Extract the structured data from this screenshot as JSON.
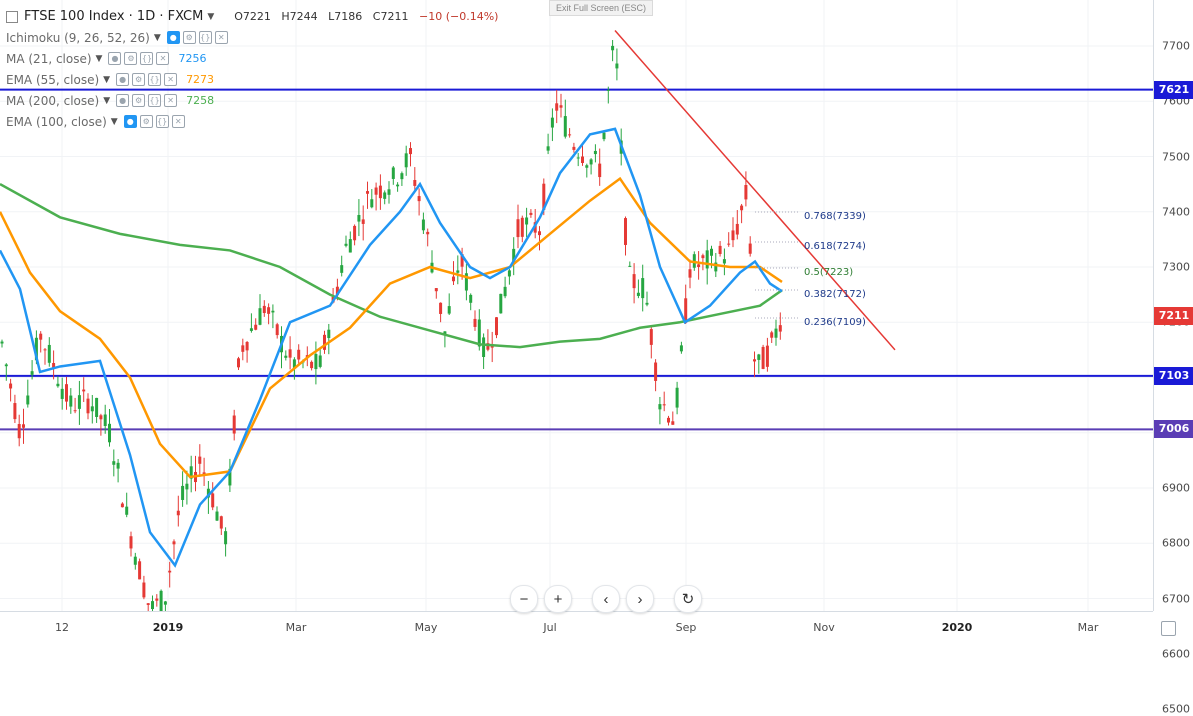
{
  "header": {
    "symbol": "FTSE 100 Index · 1D · FXCM",
    "open": "O7221",
    "high": "H7244",
    "low": "L7186",
    "close": "C7211",
    "change": "−10 (−0.14%)"
  },
  "exit_fullscreen": "Exit Full Screen (ESC)",
  "indicators": [
    {
      "name": "Ichimoku (9, 26, 52, 26)",
      "value": "",
      "color": "#2196f3",
      "icon": "eye-slash-icon"
    },
    {
      "name": "MA (21, close)",
      "value": "7256",
      "color": "#2196f3",
      "icon": "eye-icon"
    },
    {
      "name": "EMA (55, close)",
      "value": "7273",
      "color": "#ff9800",
      "icon": "eye-icon"
    },
    {
      "name": "MA (200, close)",
      "value": "7258",
      "color": "#4caf50",
      "icon": "eye-icon"
    },
    {
      "name": "EMA (100, close)",
      "value": "",
      "color": "#2196f3",
      "icon": "eye-slash-icon"
    }
  ],
  "price_axis": {
    "ticks": [
      "7700",
      "7600",
      "7500",
      "7400",
      "7300",
      "7200",
      "7100",
      "7000",
      "6900",
      "6800",
      "6700",
      "6600",
      "6500"
    ],
    "tags": [
      {
        "label": "7621",
        "color": "#1a1ad6"
      },
      {
        "label": "7211",
        "color": "#e53935"
      },
      {
        "label": "7103",
        "color": "#1a1ad6"
      },
      {
        "label": "7006",
        "color": "#5a3db5"
      }
    ]
  },
  "time_axis": {
    "ticks": [
      {
        "label": "12",
        "bold": false
      },
      {
        "label": "2019",
        "bold": true
      },
      {
        "label": "Mar",
        "bold": false
      },
      {
        "label": "May",
        "bold": false
      },
      {
        "label": "Jul",
        "bold": false
      },
      {
        "label": "Sep",
        "bold": false
      },
      {
        "label": "Nov",
        "bold": false
      },
      {
        "label": "2020",
        "bold": true
      },
      {
        "label": "Mar",
        "bold": false
      }
    ]
  },
  "fibonacci": [
    {
      "label": "0.768(7339)",
      "color": "#1e3a8a"
    },
    {
      "label": "0.618(7274)",
      "color": "#1e3a8a"
    },
    {
      "label": "0.5(7223)",
      "color": "#2e7d32"
    },
    {
      "label": "0.382(7172)",
      "color": "#1e3a8a"
    },
    {
      "label": "0.236(7109)",
      "color": "#1e3a8a"
    }
  ],
  "horizontal_levels": [
    {
      "price": 7621,
      "color": "#1a1ad6"
    },
    {
      "price": 7103,
      "color": "#1a1ad6"
    },
    {
      "price": 7006,
      "color": "#5a3db5"
    }
  ],
  "colors": {
    "up_candle": "#26a641",
    "down_candle": "#e53935",
    "ma21": "#2196f3",
    "ema55": "#ff9800",
    "ma200": "#4caf50",
    "trendline": "#e53935"
  },
  "nav_buttons": [
    "−",
    "+",
    "‹",
    "›",
    "↻"
  ]
}
